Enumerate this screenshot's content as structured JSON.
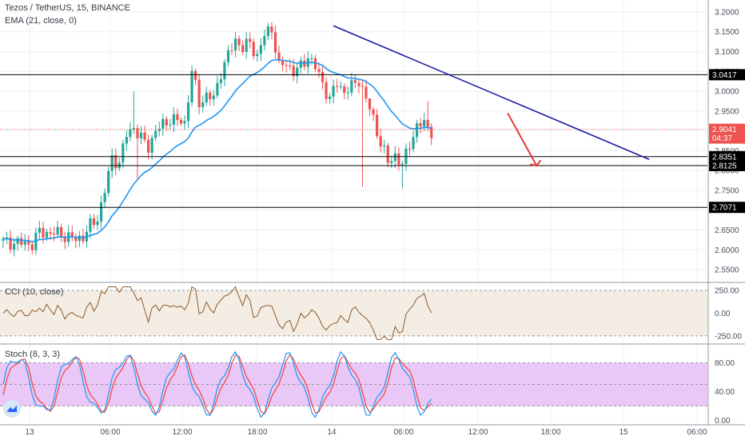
{
  "header": {
    "symbol_line": "Tezos / TetherUS, 15, BINANCE",
    "ema_line": "EMA (21, close, 0)",
    "cci_line": "CCI (10, close)",
    "stoch_line": "Stoch (8, 3, 3)"
  },
  "colors": {
    "up": "#26a69a",
    "down": "#ef5350",
    "ema": "#2196f3",
    "trendline": "#1a1aa6",
    "arrow": "#e53935",
    "cci": "#8d5a2b",
    "cci_band": "#f3ede4",
    "stoch_k": "#2196f3",
    "stoch_d": "#f44336",
    "stoch_band": "#e9c7f7",
    "level_line": "#000000",
    "price_line": "#ef5350"
  },
  "chart_data": [
    {
      "type": "candlestick",
      "title": "Tezos / TetherUS, 15, BINANCE",
      "x_ticks": [
        "13",
        "06:00",
        "12:00",
        "18:00",
        "14",
        "06:00",
        "12:00",
        "18:00",
        "15",
        "06:00"
      ],
      "y_ticks": [
        "3.2000",
        "3.1500",
        "3.1000",
        "3.0500",
        "3.0000",
        "2.9500",
        "2.9000",
        "2.8500",
        "2.8000",
        "2.7500",
        "2.7000",
        "2.6500",
        "2.6000",
        "2.5500"
      ],
      "ylim": [
        2.53,
        3.22
      ],
      "series_name": "EMA (21, close, 0)",
      "price_labels": [
        {
          "text": "3.0417",
          "value": 3.0417,
          "style": "level"
        },
        {
          "text": "2.9041",
          "value": 2.9041,
          "style": "current"
        },
        {
          "text": "04:37",
          "value": 2.882,
          "style": "countdown"
        },
        {
          "text": "2.8351",
          "value": 2.8351,
          "style": "level"
        },
        {
          "text": "2.8125",
          "value": 2.8125,
          "style": "level"
        },
        {
          "text": "2.7071",
          "value": 2.7071,
          "style": "level"
        }
      ],
      "horizontal_levels": [
        3.0417,
        2.8351,
        2.8125,
        2.7071
      ],
      "current_price": 2.9041,
      "trendline": {
        "from": {
          "bar": 91,
          "price": 3.165
        },
        "to": {
          "bar": 178,
          "price": 2.828
        }
      },
      "arrow": {
        "from": {
          "bar": 139,
          "price": 2.945
        },
        "to": {
          "bar": 147,
          "price": 2.812
        }
      }
    },
    {
      "type": "line",
      "title": "CCI (10, close)",
      "y_ticks": [
        "250.00",
        "0.00",
        "-250.00"
      ],
      "ylim": [
        -330,
        330
      ],
      "band": [
        -250,
        250
      ]
    },
    {
      "type": "line",
      "title": "Stoch (8, 3, 3)",
      "y_ticks": [
        "80.00",
        "40.00",
        "0.00"
      ],
      "ylim": [
        -5,
        105
      ],
      "band": [
        20,
        80
      ]
    }
  ]
}
